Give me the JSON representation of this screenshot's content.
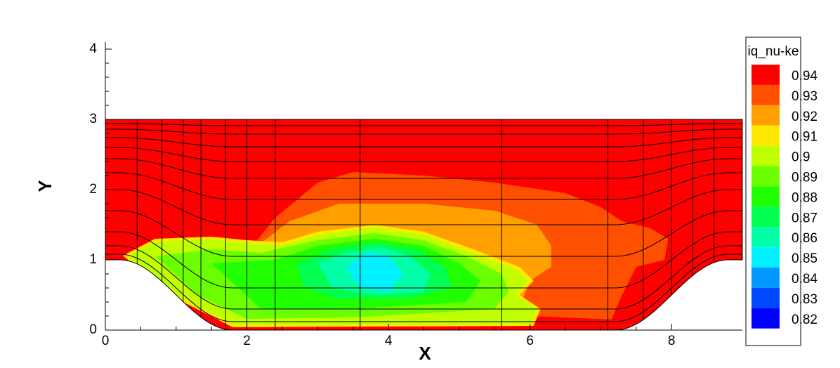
{
  "chart_data": {
    "type": "contour",
    "xlabel": "X",
    "ylabel": "Y",
    "xlim": [
      0,
      9
    ],
    "ylim": [
      0,
      4.1
    ],
    "xticks": [
      0,
      2,
      4,
      6,
      8
    ],
    "yticks": [
      0,
      1,
      2,
      3,
      4
    ],
    "legend_title": "iq_nu-ke",
    "legend_position": "right",
    "grid": "mesh",
    "levels": [
      0.94,
      0.93,
      0.92,
      0.91,
      0.9,
      0.89,
      0.88,
      0.87,
      0.86,
      0.85,
      0.84,
      0.83,
      0.82
    ],
    "colors": [
      "#ff0000",
      "#ff4f00",
      "#ffa000",
      "#ffe800",
      "#bfff00",
      "#6cff00",
      "#20ff00",
      "#00ff50",
      "#00ffa8",
      "#00f0ff",
      "#0098ff",
      "#0048ff",
      "#0000ff"
    ]
  }
}
